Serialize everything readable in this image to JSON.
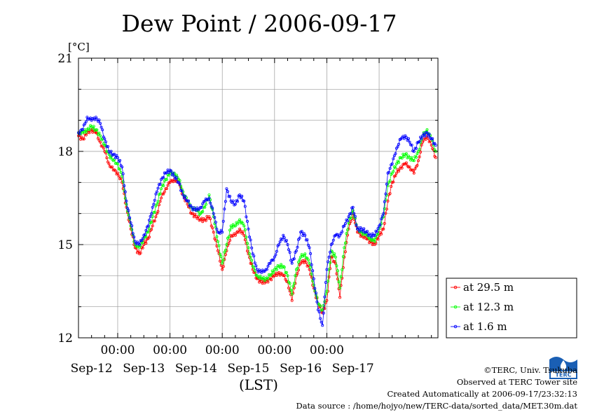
{
  "chart_data": {
    "type": "line",
    "title": "Dew Point / 2006-09-17",
    "ylabel": "[°C]",
    "xlabel": "(LST)",
    "ylim": [
      12,
      21
    ],
    "yticks": [
      12,
      15,
      18,
      21
    ],
    "xlim": [
      "2006-09-11 06:00",
      "2006-09-17 06:00"
    ],
    "x_time_labels": [
      "00:00",
      "00:00",
      "00:00",
      "00:00",
      "00:00"
    ],
    "x_date_labels": [
      "Sep-12",
      "Sep-13",
      "Sep-14",
      "Sep-15",
      "Sep-16",
      "Sep-17"
    ],
    "grid": true,
    "legend_position": "right-bottom",
    "x_unit": "hours since 2006-09-11 06:00",
    "series": [
      {
        "name": "at 29.5 m",
        "color": "#ff0000",
        "points": [
          [
            0,
            18.5
          ],
          [
            2,
            18.4
          ],
          [
            4,
            18.6
          ],
          [
            6,
            18.7
          ],
          [
            8,
            18.6
          ],
          [
            10,
            18.3
          ],
          [
            12,
            18.0
          ],
          [
            14,
            17.6
          ],
          [
            16,
            17.4
          ],
          [
            18,
            17.3
          ],
          [
            20,
            17.0
          ],
          [
            22,
            16.2
          ],
          [
            24,
            15.5
          ],
          [
            26,
            14.9
          ],
          [
            28,
            14.7
          ],
          [
            30,
            15.0
          ],
          [
            32,
            15.2
          ],
          [
            34,
            15.6
          ],
          [
            36,
            16.0
          ],
          [
            38,
            16.5
          ],
          [
            40,
            16.8
          ],
          [
            42,
            17.0
          ],
          [
            44,
            17.1
          ],
          [
            46,
            17.0
          ],
          [
            48,
            16.6
          ],
          [
            50,
            16.3
          ],
          [
            52,
            16.0
          ],
          [
            54,
            15.9
          ],
          [
            56,
            15.8
          ],
          [
            58,
            15.8
          ],
          [
            60,
            15.9
          ],
          [
            62,
            15.4
          ],
          [
            64,
            14.8
          ],
          [
            66,
            14.2
          ],
          [
            68,
            14.8
          ],
          [
            70,
            15.3
          ],
          [
            72,
            15.3
          ],
          [
            74,
            15.5
          ],
          [
            76,
            15.3
          ],
          [
            78,
            14.7
          ],
          [
            80,
            14.2
          ],
          [
            82,
            13.9
          ],
          [
            84,
            13.8
          ],
          [
            86,
            13.8
          ],
          [
            88,
            13.9
          ],
          [
            90,
            14.0
          ],
          [
            92,
            14.1
          ],
          [
            94,
            14.0
          ],
          [
            96,
            13.8
          ],
          [
            98,
            13.2
          ],
          [
            100,
            14.0
          ],
          [
            102,
            14.4
          ],
          [
            104,
            14.5
          ],
          [
            106,
            14.2
          ],
          [
            108,
            13.6
          ],
          [
            110,
            13.1
          ],
          [
            112,
            12.8
          ],
          [
            114,
            13.2
          ],
          [
            116,
            14.6
          ],
          [
            118,
            14.4
          ],
          [
            120,
            13.3
          ],
          [
            122,
            14.6
          ],
          [
            124,
            15.5
          ],
          [
            126,
            16.0
          ],
          [
            128,
            15.4
          ],
          [
            130,
            15.3
          ],
          [
            132,
            15.2
          ],
          [
            134,
            15.1
          ],
          [
            136,
            15.0
          ],
          [
            138,
            15.3
          ],
          [
            140,
            15.5
          ],
          [
            142,
            16.4
          ],
          [
            144,
            17.0
          ],
          [
            146,
            17.3
          ],
          [
            148,
            17.5
          ],
          [
            150,
            17.6
          ],
          [
            152,
            17.5
          ],
          [
            154,
            17.3
          ],
          [
            156,
            17.7
          ],
          [
            158,
            18.3
          ],
          [
            160,
            18.5
          ],
          [
            162,
            18.2
          ],
          [
            164,
            17.8
          ]
        ]
      },
      {
        "name": "at 12.3 m",
        "color": "#00ff00",
        "points": [
          [
            0,
            18.6
          ],
          [
            2,
            18.6
          ],
          [
            4,
            18.7
          ],
          [
            6,
            18.8
          ],
          [
            8,
            18.7
          ],
          [
            10,
            18.5
          ],
          [
            12,
            18.2
          ],
          [
            14,
            17.9
          ],
          [
            16,
            17.7
          ],
          [
            18,
            17.6
          ],
          [
            20,
            17.2
          ],
          [
            22,
            16.3
          ],
          [
            24,
            15.6
          ],
          [
            26,
            15.0
          ],
          [
            28,
            14.9
          ],
          [
            30,
            15.2
          ],
          [
            32,
            15.4
          ],
          [
            34,
            15.9
          ],
          [
            36,
            16.3
          ],
          [
            38,
            16.8
          ],
          [
            40,
            17.1
          ],
          [
            42,
            17.3
          ],
          [
            44,
            17.3
          ],
          [
            46,
            17.1
          ],
          [
            48,
            16.7
          ],
          [
            50,
            16.4
          ],
          [
            52,
            16.2
          ],
          [
            54,
            16.1
          ],
          [
            56,
            16.0
          ],
          [
            58,
            16.2
          ],
          [
            60,
            16.6
          ],
          [
            62,
            15.9
          ],
          [
            64,
            15.1
          ],
          [
            66,
            14.4
          ],
          [
            68,
            15.0
          ],
          [
            70,
            15.6
          ],
          [
            72,
            15.6
          ],
          [
            74,
            15.8
          ],
          [
            76,
            15.6
          ],
          [
            78,
            14.9
          ],
          [
            80,
            14.3
          ],
          [
            82,
            14.0
          ],
          [
            84,
            13.9
          ],
          [
            86,
            13.9
          ],
          [
            88,
            14.0
          ],
          [
            90,
            14.2
          ],
          [
            92,
            14.3
          ],
          [
            94,
            14.3
          ],
          [
            96,
            14.0
          ],
          [
            98,
            13.4
          ],
          [
            100,
            14.2
          ],
          [
            102,
            14.6
          ],
          [
            104,
            14.7
          ],
          [
            106,
            14.4
          ],
          [
            108,
            13.7
          ],
          [
            110,
            13.1
          ],
          [
            112,
            12.9
          ],
          [
            114,
            13.5
          ],
          [
            116,
            14.8
          ],
          [
            118,
            14.6
          ],
          [
            120,
            13.6
          ],
          [
            122,
            14.9
          ],
          [
            124,
            15.7
          ],
          [
            126,
            16.1
          ],
          [
            128,
            15.5
          ],
          [
            130,
            15.4
          ],
          [
            132,
            15.3
          ],
          [
            134,
            15.2
          ],
          [
            136,
            15.1
          ],
          [
            138,
            15.5
          ],
          [
            140,
            15.9
          ],
          [
            142,
            16.9
          ],
          [
            144,
            17.3
          ],
          [
            146,
            17.6
          ],
          [
            148,
            17.8
          ],
          [
            150,
            17.9
          ],
          [
            152,
            17.8
          ],
          [
            154,
            17.7
          ],
          [
            156,
            18.0
          ],
          [
            158,
            18.5
          ],
          [
            160,
            18.7
          ],
          [
            162,
            18.4
          ],
          [
            164,
            18.0
          ]
        ]
      },
      {
        "name": "at 1.6 m",
        "color": "#0000ff",
        "points": [
          [
            0,
            18.6
          ],
          [
            2,
            18.7
          ],
          [
            4,
            19.1
          ],
          [
            6,
            19.0
          ],
          [
            8,
            19.1
          ],
          [
            10,
            18.9
          ],
          [
            12,
            18.4
          ],
          [
            14,
            18.0
          ],
          [
            16,
            17.9
          ],
          [
            18,
            17.8
          ],
          [
            20,
            17.5
          ],
          [
            22,
            16.4
          ],
          [
            24,
            15.7
          ],
          [
            26,
            15.1
          ],
          [
            28,
            15.0
          ],
          [
            30,
            15.3
          ],
          [
            32,
            15.6
          ],
          [
            34,
            16.2
          ],
          [
            36,
            16.7
          ],
          [
            38,
            17.1
          ],
          [
            40,
            17.3
          ],
          [
            42,
            17.4
          ],
          [
            44,
            17.2
          ],
          [
            46,
            17.0
          ],
          [
            48,
            16.6
          ],
          [
            50,
            16.4
          ],
          [
            52,
            16.2
          ],
          [
            54,
            16.1
          ],
          [
            56,
            16.2
          ],
          [
            58,
            16.4
          ],
          [
            60,
            16.5
          ],
          [
            62,
            16.0
          ],
          [
            64,
            15.4
          ],
          [
            66,
            15.4
          ],
          [
            68,
            16.8
          ],
          [
            70,
            16.4
          ],
          [
            72,
            16.3
          ],
          [
            74,
            16.6
          ],
          [
            76,
            16.4
          ],
          [
            78,
            15.5
          ],
          [
            80,
            14.7
          ],
          [
            82,
            14.2
          ],
          [
            84,
            14.1
          ],
          [
            86,
            14.2
          ],
          [
            88,
            14.4
          ],
          [
            90,
            14.6
          ],
          [
            92,
            15.0
          ],
          [
            94,
            15.3
          ],
          [
            96,
            15.0
          ],
          [
            98,
            14.4
          ],
          [
            100,
            14.8
          ],
          [
            102,
            15.4
          ],
          [
            104,
            15.3
          ],
          [
            106,
            14.9
          ],
          [
            108,
            13.9
          ],
          [
            110,
            12.9
          ],
          [
            112,
            12.4
          ],
          [
            114,
            14.2
          ],
          [
            116,
            15.0
          ],
          [
            118,
            15.3
          ],
          [
            120,
            15.3
          ],
          [
            122,
            15.6
          ],
          [
            124,
            15.9
          ],
          [
            126,
            16.2
          ],
          [
            128,
            15.5
          ],
          [
            130,
            15.5
          ],
          [
            132,
            15.4
          ],
          [
            134,
            15.3
          ],
          [
            136,
            15.3
          ],
          [
            138,
            15.6
          ],
          [
            140,
            16.0
          ],
          [
            142,
            17.3
          ],
          [
            144,
            17.6
          ],
          [
            146,
            18.1
          ],
          [
            148,
            18.4
          ],
          [
            150,
            18.5
          ],
          [
            152,
            18.3
          ],
          [
            154,
            18.0
          ],
          [
            156,
            18.3
          ],
          [
            158,
            18.5
          ],
          [
            160,
            18.6
          ],
          [
            162,
            18.4
          ],
          [
            164,
            18.2
          ]
        ]
      }
    ]
  },
  "footer": {
    "copyright": "©TERC, Univ. Tsukuba",
    "observed": "Observed at TERC Tower site",
    "created": "Created Automatically at 2006-09-17/23:32:13",
    "source": "Data source : /home/hojyo/new/TERC-data/sorted_data/MET.30m.dat",
    "logo_text": "TERC"
  }
}
